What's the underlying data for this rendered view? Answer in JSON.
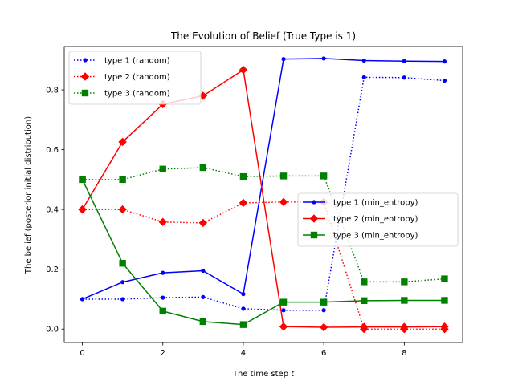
{
  "chart_data": {
    "type": "line",
    "title": "The Evolution of Belief (True Type is 1)",
    "xlabel": "The time step ",
    "xlabel_var": "t",
    "ylabel": "The belief (posterior initial distribution)",
    "xlim": [
      -0.45,
      9.45
    ],
    "ylim": [
      -0.045,
      0.945
    ],
    "xticks": [
      0,
      2,
      4,
      6,
      8
    ],
    "xtick_labels": [
      "0",
      "2",
      "4",
      "6",
      "8"
    ],
    "yticks": [
      0.0,
      0.2,
      0.4,
      0.6,
      0.8
    ],
    "ytick_labels": [
      "0.0",
      "0.2",
      "0.4",
      "0.6",
      "0.8"
    ],
    "grid": false,
    "x": [
      0,
      1,
      2,
      3,
      4,
      5,
      6,
      7,
      8,
      9
    ],
    "series": [
      {
        "name": "type 1 (random)",
        "color": "#0000ff",
        "linestyle": "dotted",
        "marker": "point",
        "values": [
          0.1,
          0.1,
          0.105,
          0.107,
          0.068,
          0.063,
          0.063,
          0.842,
          0.841,
          0.831
        ]
      },
      {
        "name": "type 2 (random)",
        "color": "#ff0000",
        "linestyle": "dotted",
        "marker": "diamond",
        "values": [
          0.4,
          0.4,
          0.358,
          0.355,
          0.422,
          0.425,
          0.425,
          0.0,
          0.0,
          0.0
        ]
      },
      {
        "name": "type 3 (random)",
        "color": "#008000",
        "linestyle": "dotted",
        "marker": "square",
        "values": [
          0.5,
          0.5,
          0.535,
          0.54,
          0.51,
          0.512,
          0.512,
          0.158,
          0.158,
          0.168
        ]
      },
      {
        "name": "type 1 (min_entropy)",
        "color": "#0000ff",
        "linestyle": "solid",
        "marker": "point",
        "values": [
          0.1,
          0.157,
          0.188,
          0.195,
          0.117,
          0.903,
          0.905,
          0.898,
          0.896,
          0.895
        ]
      },
      {
        "name": "type 2 (min_entropy)",
        "color": "#ff0000",
        "linestyle": "solid",
        "marker": "diamond",
        "values": [
          0.4,
          0.626,
          0.752,
          0.78,
          0.867,
          0.008,
          0.006,
          0.007,
          0.007,
          0.008
        ]
      },
      {
        "name": "type 3 (min_entropy)",
        "color": "#008000",
        "linestyle": "solid",
        "marker": "square",
        "values": [
          0.5,
          0.22,
          0.06,
          0.025,
          0.015,
          0.09,
          0.09,
          0.095,
          0.096,
          0.096
        ]
      }
    ],
    "legends": [
      {
        "position": "upper-left",
        "series": [
          0,
          1,
          2
        ]
      },
      {
        "position": "center-right",
        "series": [
          3,
          4,
          5
        ]
      }
    ]
  }
}
